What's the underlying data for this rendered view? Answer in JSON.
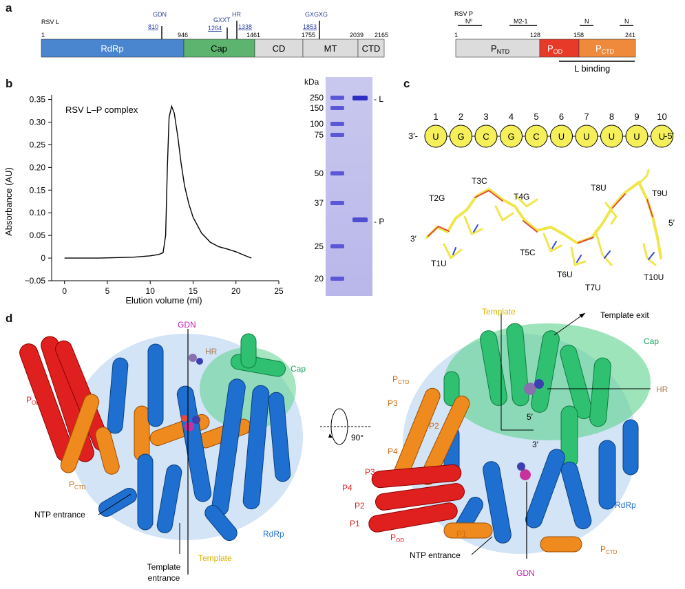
{
  "panels": {
    "a": "a",
    "b": "b",
    "c": "c",
    "d": "d"
  },
  "panel_a": {
    "rsv_l": {
      "title": "RSV L",
      "positions": [
        "1",
        "946",
        "1461",
        "1755",
        "2039",
        "2165"
      ],
      "domains": [
        {
          "label": "RdRp",
          "start": 1,
          "end": 946,
          "color": "#4a86cf"
        },
        {
          "label": "Cap",
          "start": 946,
          "end": 1461,
          "color": "#5cb46e"
        },
        {
          "label": "CD",
          "start": 1461,
          "end": 1755,
          "color": "#dcdcdc"
        },
        {
          "label": "MT",
          "start": 1755,
          "end": 2039,
          "color": "#dcdcdc"
        },
        {
          "label": "CTD",
          "start": 2039,
          "end": 2165,
          "color": "#dcdcdc"
        }
      ],
      "motifs": [
        {
          "name": "GDN",
          "pos": "810"
        },
        {
          "name": "GXXT",
          "pos": "1264"
        },
        {
          "name": "HR",
          "pos": "1338"
        },
        {
          "name": "GXGXG",
          "pos": "1853"
        }
      ]
    },
    "rsv_p": {
      "title": "RSV P",
      "positions": [
        "1",
        "128",
        "158",
        "241"
      ],
      "domains": [
        {
          "label": "P",
          "sub": "NTD",
          "color": "#dcdcdc"
        },
        {
          "label": "P",
          "sub": "OD",
          "color": "#e83a28"
        },
        {
          "label": "P",
          "sub": "CTD",
          "color": "#ef8a3c"
        }
      ],
      "bars": [
        "N⁰",
        "M2-1",
        "N",
        "N"
      ],
      "l_binding": "L binding"
    }
  },
  "panel_b": {
    "chart_data": {
      "type": "line",
      "title": "RSV L–P complex",
      "xlabel": "Elution volume (ml)",
      "ylabel": "Absorbance (AU)",
      "xlim": [
        -1.5,
        25
      ],
      "ylim": [
        -0.05,
        0.36
      ],
      "xticks": [
        "0",
        "5",
        "10",
        "15",
        "20",
        "25"
      ],
      "yticks": [
        "−0.05",
        "0",
        "0.05",
        "0.10",
        "0.15",
        "0.20",
        "0.25",
        "0.30",
        "0.35"
      ],
      "x": [
        0,
        2,
        4,
        6,
        8,
        10,
        11,
        11.5,
        11.8,
        12.0,
        12.2,
        12.5,
        12.8,
        13.2,
        13.6,
        14.0,
        14.5,
        15,
        16,
        17,
        18,
        19,
        20,
        21,
        21.8
      ],
      "y": [
        0.0,
        0.0,
        0.0,
        0.001,
        0.002,
        0.005,
        0.008,
        0.012,
        0.05,
        0.2,
        0.31,
        0.335,
        0.32,
        0.27,
        0.21,
        0.16,
        0.12,
        0.09,
        0.055,
        0.035,
        0.025,
        0.02,
        0.014,
        0.006,
        0.0
      ]
    },
    "gel": {
      "kda_label": "kDa",
      "markers": [
        "250",
        "150",
        "100",
        "75",
        "50",
        "37",
        "25",
        "20"
      ],
      "band_labels": [
        "L",
        "P"
      ]
    }
  },
  "panel_c": {
    "prefix": "3′-",
    "suffix": "-5′",
    "nucleotides": [
      {
        "n": "1",
        "base": "U"
      },
      {
        "n": "2",
        "base": "G"
      },
      {
        "n": "3",
        "base": "C"
      },
      {
        "n": "4",
        "base": "G"
      },
      {
        "n": "5",
        "base": "C"
      },
      {
        "n": "6",
        "base": "U"
      },
      {
        "n": "7",
        "base": "U"
      },
      {
        "n": "8",
        "base": "U"
      },
      {
        "n": "9",
        "base": "U"
      },
      {
        "n": "10",
        "base": "U"
      }
    ],
    "structure_labels": [
      "T2G",
      "T3C",
      "T4G",
      "3′",
      "T1U",
      "T5C",
      "T6U",
      "T7U",
      "T8U",
      "T9U",
      "5′",
      "T10U"
    ]
  },
  "panel_d": {
    "left_labels": {
      "gdn": "GDN",
      "hr": "HR",
      "cap": "Cap",
      "pod": "P",
      "pod_sub": "OD",
      "pctd": "P",
      "pctd_sub": "CTD",
      "ntp": "NTP entrance",
      "rdrp": "RdRp",
      "template": "Template",
      "template_entrance": "Template\nentrance"
    },
    "rotation": "90°",
    "right_labels": {
      "template": "Template",
      "template_exit": "Template exit",
      "cap": "Cap",
      "hr": "HR",
      "pctd": "P",
      "pctd_sub": "CTD",
      "p3": "P3",
      "p2": "P2",
      "p4": "P4",
      "p3r": "P3",
      "p4r": "P4",
      "p2r": "P2",
      "p1r": "P1",
      "pod": "P",
      "pod_sub": "OD",
      "five": "5′",
      "three": "3′",
      "rdrp": "RdRp",
      "p1": "P1",
      "ntp": "NTP entrance",
      "pctd2": "P",
      "pctd2_sub": "CTD",
      "gdn": "GDN"
    }
  }
}
